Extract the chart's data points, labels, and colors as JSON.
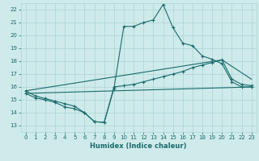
{
  "xlabel": "Humidex (Indice chaleur)",
  "xlim": [
    -0.5,
    23.5
  ],
  "ylim": [
    12.5,
    22.5
  ],
  "xticks": [
    0,
    1,
    2,
    3,
    4,
    5,
    6,
    7,
    8,
    9,
    10,
    11,
    12,
    13,
    14,
    15,
    16,
    17,
    18,
    19,
    20,
    21,
    22,
    23
  ],
  "yticks": [
    13,
    14,
    15,
    16,
    17,
    18,
    19,
    20,
    21,
    22
  ],
  "bg_color": "#ceeaea",
  "grid_color": "#aed4d4",
  "line_color": "#1a6b6b",
  "line1_x": [
    0,
    1,
    2,
    3,
    4,
    5,
    6,
    7,
    8,
    9,
    10,
    11,
    12,
    13,
    14,
    15,
    16,
    17,
    18,
    19,
    20,
    21,
    22,
    23
  ],
  "line1_y": [
    15.7,
    15.3,
    15.1,
    14.9,
    14.7,
    14.5,
    14.0,
    13.3,
    13.25,
    15.9,
    20.7,
    20.7,
    21.0,
    21.2,
    22.4,
    20.6,
    19.4,
    19.2,
    18.4,
    18.15,
    17.8,
    16.4,
    16.0,
    16.0
  ],
  "line2_x": [
    0,
    1,
    2,
    3,
    4,
    5,
    6,
    7,
    8,
    9,
    10,
    11,
    12,
    13,
    14,
    15,
    16,
    17,
    18,
    19,
    20,
    21,
    22,
    23
  ],
  "line2_y": [
    15.5,
    15.15,
    15.0,
    14.8,
    14.45,
    14.3,
    14.0,
    13.3,
    13.25,
    16.0,
    16.1,
    16.2,
    16.4,
    16.6,
    16.8,
    17.0,
    17.2,
    17.5,
    17.7,
    17.9,
    18.1,
    16.6,
    16.2,
    16.1
  ],
  "line3_x": [
    0,
    23
  ],
  "line3_y": [
    15.5,
    16.0
  ],
  "line4_x": [
    0,
    20,
    23
  ],
  "line4_y": [
    15.7,
    18.1,
    16.6
  ]
}
